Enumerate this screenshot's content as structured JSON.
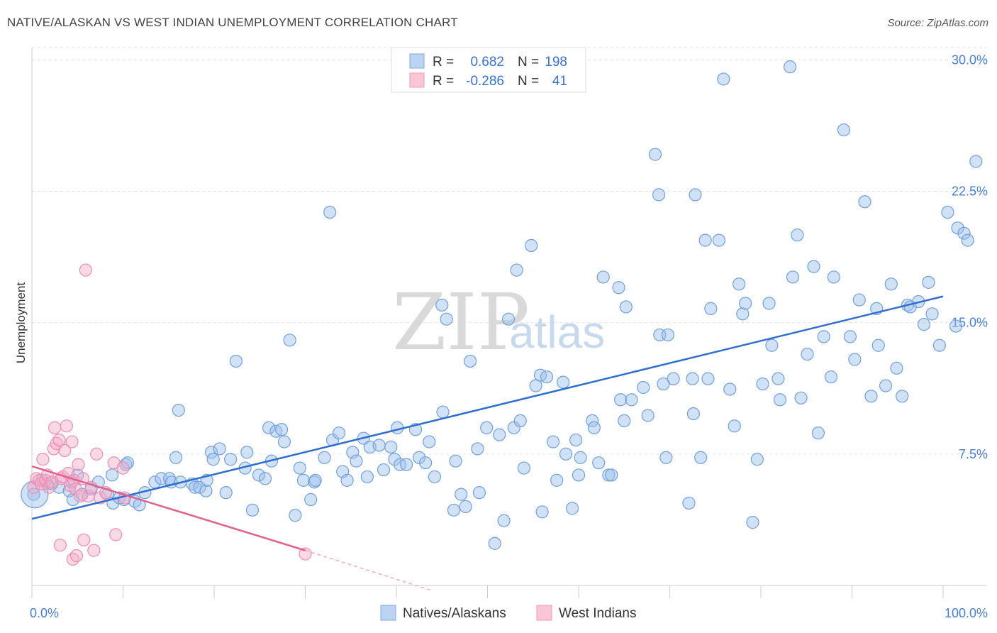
{
  "title": "NATIVE/ALASKAN VS WEST INDIAN UNEMPLOYMENT CORRELATION CHART",
  "source": "Source: ZipAtlas.com",
  "watermark": {
    "zip": "ZIP",
    "atlas": "atlas"
  },
  "colors": {
    "blue": "#6fa0e0",
    "blue_line": "#2f6fd0",
    "pink": "#f08cb0",
    "pink_line": "#e0608e"
  },
  "legend": {
    "r_label": "R =",
    "n_label": "N =",
    "rows": [
      {
        "r": "0.682",
        "n": "198"
      },
      {
        "r": "-0.286",
        "n": "41"
      }
    ]
  },
  "bottom_legend": [
    "Natives/Alaskans",
    "West Indians"
  ],
  "chart_data": {
    "type": "scatter",
    "ylabel": "Unemployment",
    "x_tick_labels": [
      "0.0%",
      "100.0%"
    ],
    "y_tick_labels": [
      "7.5%",
      "15.0%",
      "22.5%",
      "30.0%"
    ],
    "y_ticks": [
      7.5,
      15.0,
      22.5,
      30.0
    ],
    "xlim": [
      0,
      100
    ],
    "ylim": [
      0,
      30.7
    ],
    "grid": true,
    "legend_position": "top-center",
    "series": [
      {
        "name": "Natives/Alaskans",
        "color": "#6fa0e0",
        "trend": [
          [
            0,
            3.8
          ],
          [
            100,
            16.5
          ]
        ],
        "points": [
          [
            0.2,
            5.2
          ],
          [
            1.1,
            6.0
          ],
          [
            1.7,
            5.8
          ],
          [
            2.2,
            5.8
          ],
          [
            3.0,
            5.6
          ],
          [
            4.1,
            5.4
          ],
          [
            4.4,
            5.9
          ],
          [
            4.5,
            4.9
          ],
          [
            5.0,
            6.3
          ],
          [
            5.5,
            5.2
          ],
          [
            6.5,
            5.5
          ],
          [
            7.3,
            5.9
          ],
          [
            8.3,
            5.2
          ],
          [
            8.8,
            6.3
          ],
          [
            8.9,
            4.7
          ],
          [
            9.6,
            5.0
          ],
          [
            10.1,
            4.9
          ],
          [
            10.3,
            6.9
          ],
          [
            10.5,
            7.0
          ],
          [
            11.3,
            4.8
          ],
          [
            11.8,
            4.6
          ],
          [
            12.4,
            5.3
          ],
          [
            13.5,
            5.9
          ],
          [
            14.2,
            6.1
          ],
          [
            15.1,
            6.1
          ],
          [
            15.3,
            5.9
          ],
          [
            15.8,
            7.3
          ],
          [
            16.1,
            10.0
          ],
          [
            16.3,
            5.9
          ],
          [
            17.6,
            5.8
          ],
          [
            17.9,
            5.6
          ],
          [
            18.4,
            5.6
          ],
          [
            19.1,
            5.4
          ],
          [
            19.2,
            6.0
          ],
          [
            19.7,
            7.6
          ],
          [
            19.9,
            7.2
          ],
          [
            20.6,
            7.8
          ],
          [
            21.3,
            5.3
          ],
          [
            21.8,
            7.2
          ],
          [
            22.4,
            12.8
          ],
          [
            23.4,
            6.7
          ],
          [
            23.6,
            7.6
          ],
          [
            24.2,
            4.3
          ],
          [
            24.9,
            6.3
          ],
          [
            25.6,
            6.1
          ],
          [
            26.0,
            9.0
          ],
          [
            26.3,
            7.1
          ],
          [
            26.8,
            8.8
          ],
          [
            27.4,
            8.9
          ],
          [
            27.7,
            8.2
          ],
          [
            28.3,
            14.0
          ],
          [
            28.9,
            4.0
          ],
          [
            29.4,
            6.7
          ],
          [
            29.8,
            6.0
          ],
          [
            30.6,
            4.9
          ],
          [
            31.0,
            5.9
          ],
          [
            31.1,
            6.0
          ],
          [
            32.1,
            7.3
          ],
          [
            32.7,
            21.3
          ],
          [
            33.0,
            8.3
          ],
          [
            33.7,
            8.7
          ],
          [
            34.1,
            6.5
          ],
          [
            34.6,
            6.0
          ],
          [
            35.2,
            7.6
          ],
          [
            35.6,
            7.1
          ],
          [
            36.4,
            8.4
          ],
          [
            36.8,
            6.2
          ],
          [
            37.1,
            7.9
          ],
          [
            38.1,
            8.0
          ],
          [
            38.6,
            6.6
          ],
          [
            39.4,
            7.9
          ],
          [
            39.8,
            7.2
          ],
          [
            40.1,
            9.0
          ],
          [
            40.4,
            6.9
          ],
          [
            41.1,
            6.9
          ],
          [
            42.1,
            8.9
          ],
          [
            42.5,
            7.3
          ],
          [
            43.2,
            7.0
          ],
          [
            43.6,
            8.2
          ],
          [
            44.2,
            6.2
          ],
          [
            45.0,
            16.0
          ],
          [
            45.1,
            9.9
          ],
          [
            45.5,
            15.2
          ],
          [
            46.3,
            4.3
          ],
          [
            46.5,
            7.1
          ],
          [
            47.1,
            5.2
          ],
          [
            47.6,
            4.5
          ],
          [
            48.1,
            12.8
          ],
          [
            48.9,
            7.8
          ],
          [
            49.1,
            5.3
          ],
          [
            49.9,
            9.0
          ],
          [
            50.8,
            2.4
          ],
          [
            51.3,
            8.6
          ],
          [
            51.8,
            3.7
          ],
          [
            52.3,
            15.2
          ],
          [
            52.9,
            9.0
          ],
          [
            53.2,
            18.0
          ],
          [
            53.6,
            9.4
          ],
          [
            54.0,
            6.7
          ],
          [
            54.8,
            19.4
          ],
          [
            55.3,
            11.4
          ],
          [
            55.8,
            12.0
          ],
          [
            56.0,
            4.2
          ],
          [
            56.5,
            11.9
          ],
          [
            57.2,
            8.2
          ],
          [
            57.6,
            6.0
          ],
          [
            58.3,
            11.6
          ],
          [
            58.6,
            7.5
          ],
          [
            59.3,
            4.4
          ],
          [
            59.7,
            8.3
          ],
          [
            60.0,
            6.3
          ],
          [
            60.2,
            7.3
          ],
          [
            61.5,
            9.4
          ],
          [
            61.7,
            9.0
          ],
          [
            62.2,
            7.0
          ],
          [
            62.7,
            17.6
          ],
          [
            63.3,
            6.3
          ],
          [
            63.6,
            6.3
          ],
          [
            64.4,
            17.0
          ],
          [
            64.6,
            10.6
          ],
          [
            65.0,
            9.4
          ],
          [
            65.2,
            15.9
          ],
          [
            65.8,
            10.6
          ],
          [
            67.1,
            11.3
          ],
          [
            67.6,
            9.7
          ],
          [
            68.4,
            24.6
          ],
          [
            68.8,
            22.3
          ],
          [
            68.9,
            14.3
          ],
          [
            69.3,
            11.5
          ],
          [
            69.6,
            7.3
          ],
          [
            69.8,
            14.3
          ],
          [
            70.4,
            11.8
          ],
          [
            72.1,
            4.7
          ],
          [
            72.5,
            11.8
          ],
          [
            72.6,
            9.8
          ],
          [
            72.8,
            22.3
          ],
          [
            73.4,
            7.3
          ],
          [
            73.9,
            19.7
          ],
          [
            74.2,
            11.8
          ],
          [
            74.5,
            15.8
          ],
          [
            75.4,
            19.7
          ],
          [
            75.9,
            28.9
          ],
          [
            76.6,
            11.2
          ],
          [
            77.1,
            9.1
          ],
          [
            77.6,
            17.2
          ],
          [
            78.0,
            15.5
          ],
          [
            78.3,
            16.1
          ],
          [
            79.1,
            3.6
          ],
          [
            79.6,
            7.2
          ],
          [
            80.2,
            11.5
          ],
          [
            80.9,
            16.1
          ],
          [
            81.2,
            13.7
          ],
          [
            81.9,
            11.8
          ],
          [
            82.1,
            10.6
          ],
          [
            83.2,
            29.6
          ],
          [
            83.5,
            17.6
          ],
          [
            84.0,
            20.0
          ],
          [
            84.4,
            10.7
          ],
          [
            85.1,
            13.2
          ],
          [
            85.8,
            18.2
          ],
          [
            86.3,
            8.7
          ],
          [
            86.9,
            14.2
          ],
          [
            87.7,
            11.9
          ],
          [
            88.0,
            17.6
          ],
          [
            89.1,
            26.0
          ],
          [
            89.8,
            14.2
          ],
          [
            90.3,
            12.9
          ],
          [
            90.8,
            16.3
          ],
          [
            91.4,
            21.9
          ],
          [
            92.1,
            10.8
          ],
          [
            92.7,
            15.8
          ],
          [
            92.9,
            13.7
          ],
          [
            93.7,
            11.4
          ],
          [
            94.3,
            17.2
          ],
          [
            94.9,
            12.4
          ],
          [
            95.5,
            10.8
          ],
          [
            96.1,
            16.0
          ],
          [
            96.4,
            15.9
          ],
          [
            97.3,
            16.2
          ],
          [
            97.9,
            14.9
          ],
          [
            98.4,
            17.3
          ],
          [
            98.8,
            15.5
          ],
          [
            99.6,
            13.7
          ],
          [
            100.5,
            21.3
          ],
          [
            101.4,
            14.8
          ],
          [
            101.6,
            20.4
          ],
          [
            102.3,
            20.1
          ],
          [
            102.7,
            19.7
          ],
          [
            103.6,
            24.2
          ]
        ]
      },
      {
        "name": "West Indians",
        "color": "#f08cb0",
        "trend": [
          [
            0,
            6.8
          ],
          [
            30,
            2.0
          ]
        ],
        "trend_dashed": [
          [
            30,
            2.0
          ],
          [
            44,
            -0.3
          ]
        ],
        "points": [
          [
            0.2,
            5.6
          ],
          [
            0.5,
            6.1
          ],
          [
            0.8,
            6.0
          ],
          [
            1.0,
            5.8
          ],
          [
            1.2,
            7.2
          ],
          [
            1.5,
            6.0
          ],
          [
            1.7,
            6.3
          ],
          [
            1.9,
            5.6
          ],
          [
            2.2,
            5.9
          ],
          [
            2.4,
            7.8
          ],
          [
            2.5,
            9.0
          ],
          [
            2.7,
            8.1
          ],
          [
            3.0,
            8.3
          ],
          [
            3.2,
            6.1
          ],
          [
            3.4,
            6.2
          ],
          [
            3.6,
            7.7
          ],
          [
            3.8,
            9.1
          ],
          [
            3.1,
            2.3
          ],
          [
            4.0,
            6.4
          ],
          [
            4.2,
            5.7
          ],
          [
            4.4,
            8.2
          ],
          [
            4.5,
            1.5
          ],
          [
            4.6,
            6.0
          ],
          [
            4.8,
            5.5
          ],
          [
            4.9,
            1.7
          ],
          [
            5.1,
            6.9
          ],
          [
            5.3,
            5.1
          ],
          [
            5.6,
            6.1
          ],
          [
            5.7,
            2.6
          ],
          [
            5.9,
            18.0
          ],
          [
            6.2,
            5.1
          ],
          [
            6.5,
            5.6
          ],
          [
            6.8,
            2.0
          ],
          [
            7.1,
            7.5
          ],
          [
            7.5,
            5.0
          ],
          [
            8.1,
            5.3
          ],
          [
            9.0,
            7.0
          ],
          [
            9.2,
            2.9
          ],
          [
            10.0,
            6.7
          ],
          [
            10.2,
            5.0
          ],
          [
            30.0,
            1.8
          ]
        ]
      }
    ]
  }
}
